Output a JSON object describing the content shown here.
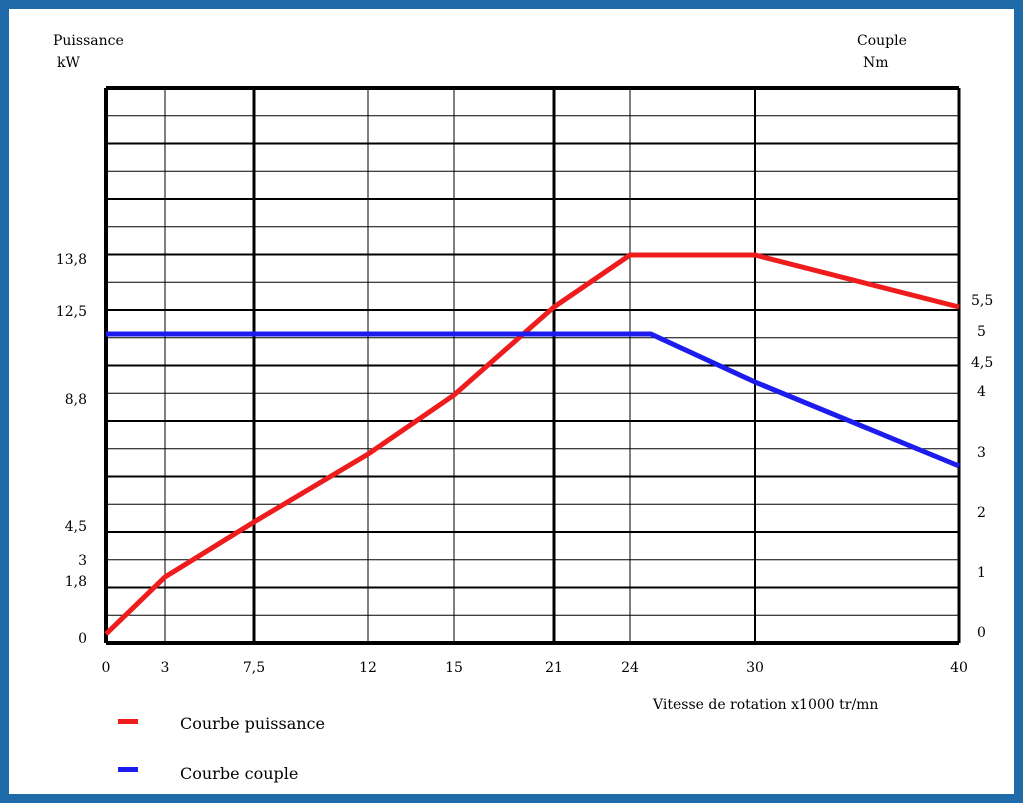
{
  "chart_data": {
    "type": "line",
    "title": "",
    "left_axis_label": [
      "Puissance",
      "kW"
    ],
    "right_axis_label": [
      "Couple",
      "Nm"
    ],
    "xlabel": "Vitesse de rotation x1000 tr/mn",
    "x_ticks": [
      "0",
      "3",
      "7,5",
      "12",
      "15",
      "21",
      "24",
      "30",
      "40"
    ],
    "left_ticks": [
      "0",
      "1,8",
      "3",
      "4,5",
      "8,8",
      "12,5",
      "13,8"
    ],
    "right_ticks": [
      "0",
      "1",
      "2",
      "3",
      "4",
      "4,5",
      "5",
      "5,5"
    ],
    "grid": true,
    "series": [
      {
        "name": "Courbe puissance",
        "axis": "left",
        "color": "#ee1c1c",
        "points": [
          [
            0,
            0
          ],
          [
            3,
            1.8
          ],
          [
            7.5,
            4.5
          ],
          [
            12,
            6.8
          ],
          [
            15,
            8.8
          ],
          [
            21,
            12.5
          ],
          [
            24,
            13.8
          ],
          [
            30,
            13.8
          ],
          [
            40,
            12.5
          ]
        ]
      },
      {
        "name": "Courbe couple",
        "axis": "right",
        "color": "#1c1cee",
        "points": [
          [
            0,
            5
          ],
          [
            25,
            5
          ],
          [
            30,
            4.2
          ],
          [
            40,
            2.8
          ]
        ]
      }
    ],
    "legend": {
      "placement": "bottom-left",
      "items": [
        "Courbe puissance",
        "Courbe couple"
      ]
    }
  }
}
